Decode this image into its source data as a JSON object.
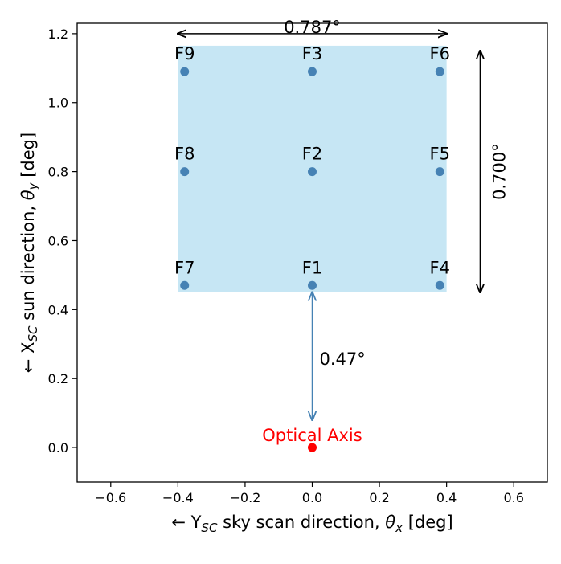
{
  "chart_data": {
    "type": "scatter",
    "xlabel": "← Y_SC sky scan direction, θ_x [deg]",
    "ylabel": "← X_SC sun direction, θ_y [deg]",
    "xlabel_parts": {
      "prefix": "← Y",
      "subscript": "SC",
      "middle": " sky scan direction, ",
      "symbol": "θ",
      "symbol_subscript": "x",
      "suffix": " [deg]"
    },
    "ylabel_parts": {
      "prefix": "← X",
      "subscript": "SC",
      "middle": " sun direction, ",
      "symbol": "θ",
      "symbol_subscript": "y",
      "suffix": " [deg]"
    },
    "xlim": [
      -0.7,
      0.7
    ],
    "ylim": [
      -0.1,
      1.23
    ],
    "xticks": [
      -0.6,
      -0.4,
      -0.2,
      0.0,
      0.2,
      0.4,
      0.6
    ],
    "xtick_labels": [
      "−0.6",
      "−0.4",
      "−0.2",
      "0.0",
      "0.2",
      "0.4",
      "0.6"
    ],
    "yticks": [
      0.0,
      0.2,
      0.4,
      0.6,
      0.8,
      1.0,
      1.2
    ],
    "ytick_labels": [
      "0.0",
      "0.2",
      "0.4",
      "0.6",
      "0.8",
      "1.0",
      "1.2"
    ],
    "grid": false,
    "field_region": {
      "x_range": [
        -0.4,
        0.4
      ],
      "y_range": [
        0.45,
        1.165
      ],
      "color": "#c6e6f4"
    },
    "points": [
      {
        "label": "F1",
        "x": 0.0,
        "y": 0.47
      },
      {
        "label": "F2",
        "x": 0.0,
        "y": 0.8
      },
      {
        "label": "F3",
        "x": 0.0,
        "y": 1.09
      },
      {
        "label": "F4",
        "x": 0.38,
        "y": 0.47
      },
      {
        "label": "F5",
        "x": 0.38,
        "y": 0.8
      },
      {
        "label": "F6",
        "x": 0.38,
        "y": 1.09
      },
      {
        "label": "F7",
        "x": -0.38,
        "y": 0.47
      },
      {
        "label": "F8",
        "x": -0.38,
        "y": 0.8
      },
      {
        "label": "F9",
        "x": -0.38,
        "y": 1.09
      }
    ],
    "point_color": "#4682b4",
    "origin_point": {
      "label": "Optical Axis",
      "x": 0.0,
      "y": 0.0,
      "color": "#ff0000"
    },
    "annotations": [
      {
        "text": "0.787°",
        "kind": "horizontal",
        "from": [
          -0.4,
          1.2
        ],
        "to": [
          0.4,
          1.2
        ],
        "color": "#000000"
      },
      {
        "text": "0.700°",
        "kind": "vertical",
        "from": [
          0.5,
          1.15
        ],
        "to": [
          0.5,
          0.45
        ],
        "color": "#000000"
      },
      {
        "text": "0.47°",
        "kind": "vertical",
        "from": [
          0.0,
          0.45
        ],
        "to": [
          0.0,
          0.08
        ],
        "color": "#4682b4"
      }
    ]
  }
}
